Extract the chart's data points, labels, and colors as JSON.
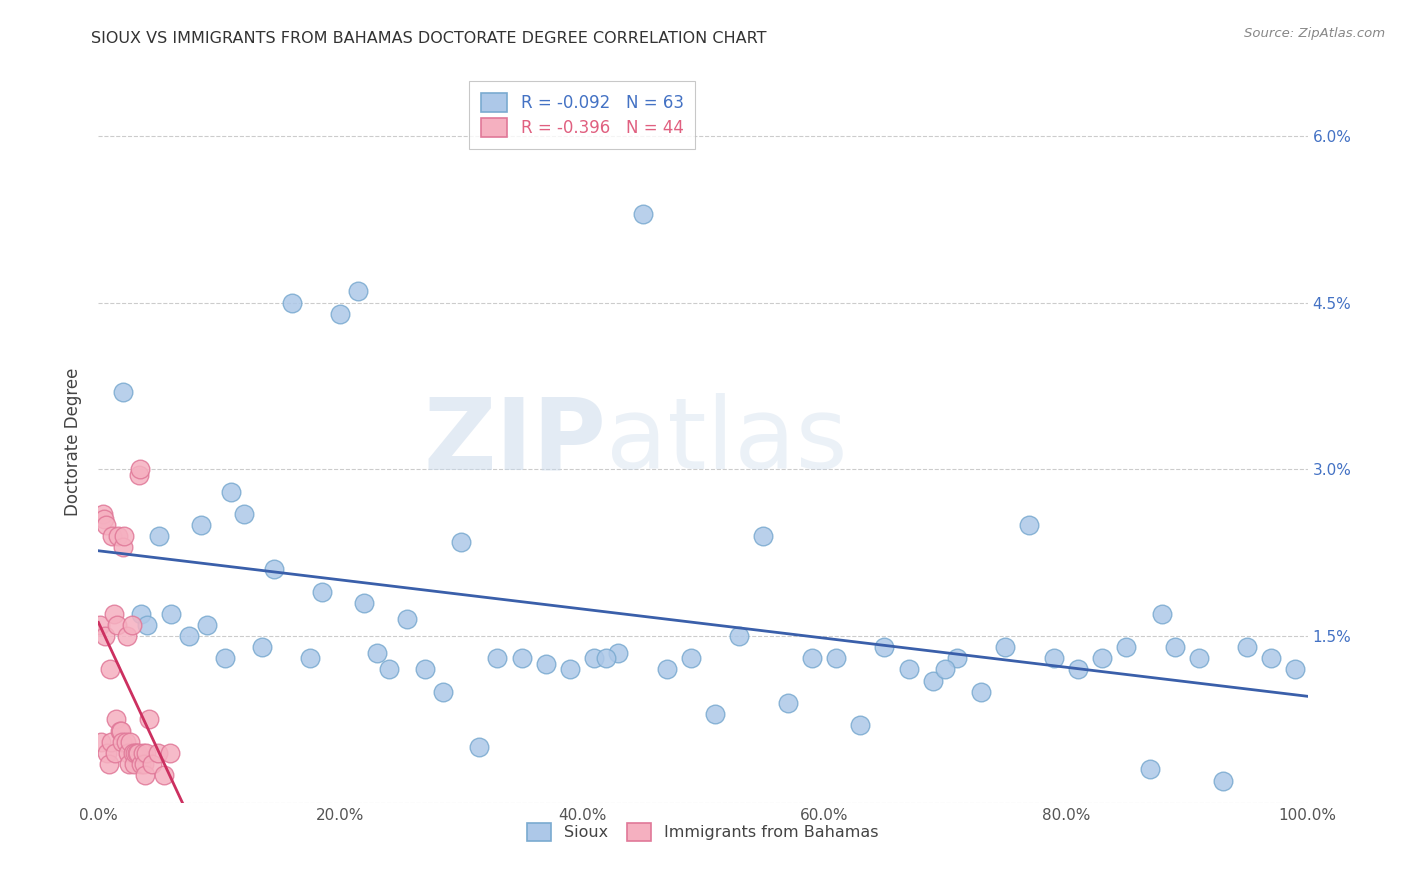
{
  "title": "SIOUX VS IMMIGRANTS FROM BAHAMAS DOCTORATE DEGREE CORRELATION CHART",
  "source": "Source: ZipAtlas.com",
  "ylabel": "Doctorate Degree",
  "xlim": [
    0,
    100
  ],
  "ylim": [
    0,
    6.5
  ],
  "yticks": [
    0,
    1.5,
    3.0,
    4.5,
    6.0
  ],
  "ytick_labels_right": [
    "",
    "1.5%",
    "3.0%",
    "4.5%",
    "6.0%"
  ],
  "xticks": [
    0,
    20,
    40,
    60,
    80,
    100
  ],
  "xtick_labels": [
    "0.0%",
    "20.0%",
    "40.0%",
    "60.0%",
    "80.0%",
    "100.0%"
  ],
  "sioux_color": "#adc8e8",
  "bahamas_color": "#f5b0c0",
  "sioux_edge": "#7aaad0",
  "bahamas_edge": "#e07898",
  "trend_blue": "#3a5faa",
  "trend_pink": "#cc3060",
  "label_color": "#4472c4",
  "legend_sioux_R": "-0.092",
  "legend_sioux_N": "63",
  "legend_bahamas_R": "-0.396",
  "legend_bahamas_N": "44",
  "sioux_x": [
    2.0,
    3.5,
    5.0,
    6.0,
    7.5,
    8.5,
    9.0,
    10.5,
    11.0,
    12.0,
    13.5,
    14.5,
    16.0,
    17.5,
    18.5,
    20.0,
    21.5,
    23.0,
    24.0,
    25.5,
    27.0,
    28.5,
    30.0,
    31.5,
    33.0,
    35.0,
    37.0,
    39.0,
    41.0,
    43.0,
    45.0,
    47.0,
    49.0,
    51.0,
    53.0,
    55.0,
    57.0,
    59.0,
    61.0,
    63.0,
    65.0,
    67.0,
    69.0,
    71.0,
    73.0,
    75.0,
    77.0,
    79.0,
    81.0,
    83.0,
    85.0,
    87.0,
    89.0,
    91.0,
    93.0,
    95.0,
    97.0,
    99.0,
    4.0,
    22.0,
    42.0,
    70.0,
    88.0
  ],
  "sioux_y": [
    3.7,
    1.7,
    2.4,
    1.7,
    1.5,
    2.5,
    1.6,
    1.3,
    2.8,
    2.6,
    1.4,
    2.1,
    4.5,
    1.3,
    1.9,
    4.4,
    4.6,
    1.35,
    1.2,
    1.65,
    1.2,
    1.0,
    2.35,
    0.5,
    1.3,
    1.3,
    1.25,
    1.2,
    1.3,
    1.35,
    5.3,
    1.2,
    1.3,
    0.8,
    1.5,
    2.4,
    0.9,
    1.3,
    1.3,
    0.7,
    1.4,
    1.2,
    1.1,
    1.3,
    1.0,
    1.4,
    2.5,
    1.3,
    1.2,
    1.3,
    1.4,
    0.3,
    1.4,
    1.3,
    0.2,
    1.4,
    1.3,
    1.2,
    1.6,
    1.8,
    1.3,
    1.2,
    1.7
  ],
  "bahamas_x": [
    0.15,
    0.25,
    0.35,
    0.45,
    0.55,
    0.65,
    0.75,
    0.85,
    0.95,
    1.05,
    1.15,
    1.25,
    1.35,
    1.45,
    1.55,
    1.65,
    1.75,
    1.85,
    1.95,
    2.05,
    2.15,
    2.25,
    2.35,
    2.45,
    2.55,
    2.65,
    2.75,
    2.85,
    2.95,
    3.05,
    3.15,
    3.25,
    3.35,
    3.45,
    3.55,
    3.65,
    3.75,
    3.85,
    3.95,
    4.15,
    4.45,
    4.95,
    5.45,
    5.95
  ],
  "bahamas_y": [
    1.6,
    0.55,
    2.6,
    2.55,
    1.5,
    2.5,
    0.45,
    0.35,
    1.2,
    0.55,
    2.4,
    1.7,
    0.45,
    0.75,
    1.6,
    2.4,
    0.65,
    0.65,
    0.55,
    2.3,
    2.4,
    0.55,
    1.5,
    0.45,
    0.35,
    0.55,
    1.6,
    0.45,
    0.35,
    0.45,
    0.45,
    0.45,
    2.95,
    3.0,
    0.35,
    0.45,
    0.35,
    0.25,
    0.45,
    0.75,
    0.35,
    0.45,
    0.25,
    0.45
  ],
  "watermark_zip": "ZIP",
  "watermark_atlas": "atlas",
  "background_color": "#ffffff",
  "grid_color": "#cccccc"
}
